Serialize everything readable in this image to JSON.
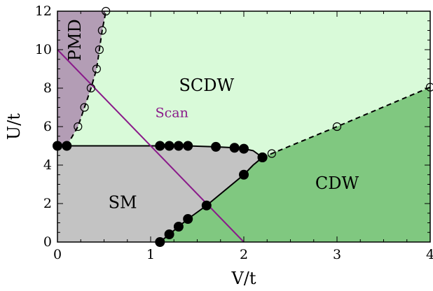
{
  "chart_data": {
    "type": "phase-diagram",
    "xlabel": "V/t",
    "ylabel": "U/t",
    "xlim": [
      0,
      4
    ],
    "ylim": [
      0,
      12
    ],
    "xticks": [
      0,
      1,
      2,
      3,
      4
    ],
    "yticks": [
      0,
      2,
      4,
      6,
      8,
      10,
      12
    ],
    "grid": false,
    "regions": [
      {
        "name": "PMD",
        "color": "#b39db5",
        "label_at": [
          0.2,
          10.5
        ],
        "rotate": true,
        "polygon": [
          [
            0,
            5
          ],
          [
            0.1,
            5
          ],
          [
            0.22,
            6
          ],
          [
            0.29,
            7
          ],
          [
            0.36,
            8
          ],
          [
            0.42,
            9
          ],
          [
            0.45,
            10
          ],
          [
            0.48,
            11
          ],
          [
            0.52,
            12
          ],
          [
            0,
            12
          ]
        ]
      },
      {
        "name": "SCDW",
        "color": "#d9fad9",
        "label_at": [
          1.6,
          8.1
        ],
        "polygon": [
          [
            0.1,
            5
          ],
          [
            0.22,
            6
          ],
          [
            0.29,
            7
          ],
          [
            0.36,
            8
          ],
          [
            0.42,
            9
          ],
          [
            0.45,
            10
          ],
          [
            0.48,
            11
          ],
          [
            0.52,
            12
          ],
          [
            4,
            12
          ],
          [
            4,
            8.05
          ],
          [
            3,
            6
          ],
          [
            2.3,
            4.6
          ],
          [
            2.2,
            4.4
          ],
          [
            2.1,
            4.75
          ],
          [
            2.0,
            4.85
          ],
          [
            1.9,
            4.9
          ],
          [
            1.7,
            4.95
          ],
          [
            1.5,
            4.98
          ],
          [
            1.4,
            5.0
          ],
          [
            1.3,
            5.0
          ],
          [
            1.2,
            5.0
          ],
          [
            1.1,
            5.0
          ],
          [
            0.1,
            5.0
          ]
        ]
      },
      {
        "name": "SM",
        "color": "#c3c3c3",
        "label_at": [
          0.7,
          2.0
        ],
        "polygon": [
          [
            0,
            0
          ],
          [
            1.1,
            0
          ],
          [
            1.2,
            0.4
          ],
          [
            1.3,
            0.8
          ],
          [
            1.4,
            1.2
          ],
          [
            1.6,
            1.9
          ],
          [
            2.0,
            3.5
          ],
          [
            2.2,
            4.4
          ],
          [
            2.1,
            4.75
          ],
          [
            2.0,
            4.85
          ],
          [
            1.9,
            4.9
          ],
          [
            1.7,
            4.95
          ],
          [
            1.5,
            4.98
          ],
          [
            1.4,
            5.0
          ],
          [
            1.3,
            5.0
          ],
          [
            1.2,
            5.0
          ],
          [
            1.1,
            5.0
          ],
          [
            0.1,
            5.0
          ],
          [
            0,
            5
          ]
        ]
      },
      {
        "name": "CDW",
        "color": "#80c880",
        "label_at": [
          3.0,
          3.0
        ],
        "polygon": [
          [
            1.1,
            0
          ],
          [
            4,
            0
          ],
          [
            4,
            8.05
          ],
          [
            3,
            6
          ],
          [
            2.3,
            4.6
          ],
          [
            2.2,
            4.4
          ],
          [
            2.0,
            3.5
          ],
          [
            1.6,
            1.9
          ],
          [
            1.4,
            1.2
          ],
          [
            1.3,
            0.8
          ],
          [
            1.2,
            0.4
          ]
        ]
      }
    ],
    "series": [
      {
        "style": "solid",
        "marker": "filled",
        "points": [
          [
            0,
            5.0
          ],
          [
            0.1,
            5.0
          ],
          [
            1.1,
            5.0
          ],
          [
            1.2,
            5.0
          ],
          [
            1.3,
            5.0
          ],
          [
            1.4,
            5.0
          ],
          [
            1.5,
            4.98
          ],
          [
            1.7,
            4.95
          ],
          [
            1.9,
            4.9
          ],
          [
            2.0,
            4.85
          ],
          [
            2.1,
            4.75
          ],
          [
            2.2,
            4.4
          ]
        ],
        "marked": [
          [
            0,
            5.0
          ],
          [
            0.1,
            5.0
          ],
          [
            1.1,
            5.0
          ],
          [
            1.2,
            5.0
          ],
          [
            1.3,
            5.0
          ],
          [
            1.4,
            5.0
          ],
          [
            1.7,
            4.95
          ],
          [
            1.9,
            4.9
          ],
          [
            2.0,
            4.85
          ],
          [
            2.2,
            4.4
          ]
        ]
      },
      {
        "style": "solid",
        "marker": "filled",
        "points": [
          [
            1.1,
            0
          ],
          [
            1.2,
            0.4
          ],
          [
            1.3,
            0.8
          ],
          [
            1.4,
            1.2
          ],
          [
            1.6,
            1.9
          ],
          [
            2.0,
            3.5
          ],
          [
            2.1,
            4.0
          ],
          [
            2.2,
            4.4
          ]
        ],
        "marked": [
          [
            1.1,
            0
          ],
          [
            1.2,
            0.4
          ],
          [
            1.3,
            0.8
          ],
          [
            1.4,
            1.2
          ],
          [
            1.6,
            1.9
          ],
          [
            2.0,
            3.5
          ],
          [
            2.2,
            4.4
          ]
        ]
      },
      {
        "style": "dashed",
        "marker": "open",
        "points": [
          [
            0.1,
            5.0
          ],
          [
            0.22,
            6
          ],
          [
            0.29,
            7
          ],
          [
            0.36,
            8
          ],
          [
            0.42,
            9
          ],
          [
            0.45,
            10
          ],
          [
            0.48,
            11
          ],
          [
            0.52,
            12
          ]
        ],
        "marked": [
          [
            0.22,
            6
          ],
          [
            0.29,
            7
          ],
          [
            0.36,
            8
          ],
          [
            0.42,
            9
          ],
          [
            0.45,
            10
          ],
          [
            0.48,
            11
          ],
          [
            0.52,
            12
          ]
        ]
      },
      {
        "style": "dashed",
        "marker": "open",
        "points": [
          [
            2.2,
            4.4
          ],
          [
            2.3,
            4.6
          ],
          [
            3.0,
            6.0
          ],
          [
            4.0,
            8.05
          ]
        ],
        "marked": [
          [
            2.3,
            4.6
          ],
          [
            3.0,
            6.0
          ],
          [
            4.0,
            8.05
          ]
        ]
      }
    ],
    "scan": {
      "label": "Scan",
      "color": "#8a1a8a",
      "from": [
        0,
        10
      ],
      "to": [
        2,
        0
      ],
      "label_at": [
        1.05,
        6.5
      ]
    }
  }
}
